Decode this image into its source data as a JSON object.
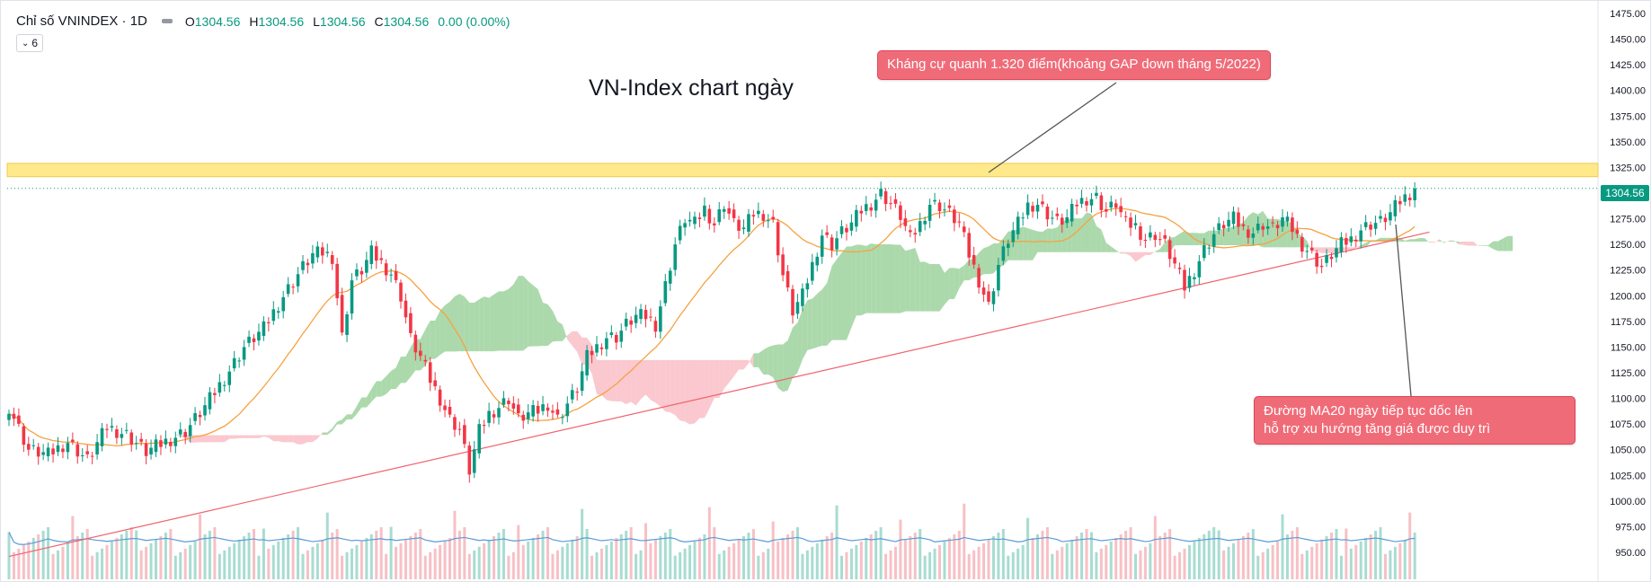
{
  "header": {
    "symbol_label": "Chỉ số VNINDEX · 1D",
    "ohlc": [
      {
        "k": "O",
        "v": "1304.56"
      },
      {
        "k": "H",
        "v": "1304.56"
      },
      {
        "k": "L",
        "v": "1304.56"
      },
      {
        "k": "C",
        "v": "1304.56"
      }
    ],
    "change": "0.00 (0.00%)",
    "indicator_count": "6"
  },
  "chart_data": {
    "type": "candlestick",
    "title": "VN-Index chart ngày",
    "y_axis": {
      "min": 950,
      "max": 1475,
      "ticks": [
        "1475.00",
        "1450.00",
        "1425.00",
        "1400.00",
        "1375.00",
        "1350.00",
        "1325.00",
        "1300.00",
        "1275.00",
        "1250.00",
        "1225.00",
        "1200.00",
        "1175.00",
        "1150.00",
        "1125.00",
        "1100.00",
        "1075.00",
        "1050.00",
        "1025.00",
        "1000.00",
        "975.00",
        "950.00"
      ]
    },
    "last_price": 1304.56,
    "last_price_label": "1304.56",
    "resistance_zone": [
      1316,
      1329
    ],
    "trendline": {
      "from_index": 0,
      "from_value": 946,
      "to_index": 290,
      "to_value": 1262
    },
    "close_anchors": [
      [
        0,
        1092
      ],
      [
        4,
        1050
      ],
      [
        8,
        1045
      ],
      [
        12,
        1058
      ],
      [
        16,
        1040
      ],
      [
        20,
        1072
      ],
      [
        24,
        1065
      ],
      [
        28,
        1048
      ],
      [
        32,
        1058
      ],
      [
        36,
        1068
      ],
      [
        40,
        1092
      ],
      [
        44,
        1120
      ],
      [
        48,
        1150
      ],
      [
        52,
        1168
      ],
      [
        56,
        1200
      ],
      [
        60,
        1228
      ],
      [
        62,
        1240
      ],
      [
        64,
        1242
      ],
      [
        66,
        1238
      ],
      [
        68,
        1160
      ],
      [
        70,
        1215
      ],
      [
        72,
        1225
      ],
      [
        74,
        1242
      ],
      [
        76,
        1232
      ],
      [
        78,
        1222
      ],
      [
        80,
        1200
      ],
      [
        82,
        1158
      ],
      [
        84,
        1140
      ],
      [
        86,
        1118
      ],
      [
        88,
        1100
      ],
      [
        90,
        1080
      ],
      [
        92,
        1070
      ],
      [
        94,
        1030
      ],
      [
        96,
        1068
      ],
      [
        98,
        1085
      ],
      [
        100,
        1092
      ],
      [
        102,
        1100
      ],
      [
        104,
        1080
      ],
      [
        106,
        1085
      ],
      [
        108,
        1088
      ],
      [
        110,
        1095
      ],
      [
        112,
        1080
      ],
      [
        114,
        1095
      ],
      [
        116,
        1110
      ],
      [
        118,
        1140
      ],
      [
        120,
        1150
      ],
      [
        122,
        1160
      ],
      [
        124,
        1160
      ],
      [
        126,
        1172
      ],
      [
        128,
        1180
      ],
      [
        130,
        1180
      ],
      [
        132,
        1172
      ],
      [
        134,
        1210
      ],
      [
        136,
        1250
      ],
      [
        138,
        1275
      ],
      [
        140,
        1270
      ],
      [
        142,
        1285
      ],
      [
        144,
        1270
      ],
      [
        146,
        1290
      ],
      [
        148,
        1270
      ],
      [
        150,
        1265
      ],
      [
        152,
        1280
      ],
      [
        154,
        1280
      ],
      [
        156,
        1270
      ],
      [
        158,
        1220
      ],
      [
        160,
        1185
      ],
      [
        162,
        1200
      ],
      [
        164,
        1230
      ],
      [
        166,
        1260
      ],
      [
        168,
        1250
      ],
      [
        170,
        1262
      ],
      [
        172,
        1270
      ],
      [
        174,
        1283
      ],
      [
        176,
        1290
      ],
      [
        178,
        1300
      ],
      [
        180,
        1290
      ],
      [
        182,
        1278
      ],
      [
        184,
        1255
      ],
      [
        186,
        1270
      ],
      [
        188,
        1290
      ],
      [
        190,
        1288
      ],
      [
        192,
        1280
      ],
      [
        194,
        1270
      ],
      [
        196,
        1240
      ],
      [
        198,
        1215
      ],
      [
        200,
        1190
      ],
      [
        202,
        1230
      ],
      [
        204,
        1255
      ],
      [
        206,
        1270
      ],
      [
        208,
        1288
      ],
      [
        210,
        1290
      ],
      [
        212,
        1280
      ],
      [
        214,
        1272
      ],
      [
        216,
        1275
      ],
      [
        218,
        1290
      ],
      [
        220,
        1295
      ],
      [
        222,
        1296
      ],
      [
        224,
        1282
      ],
      [
        226,
        1290
      ],
      [
        228,
        1270
      ],
      [
        230,
        1268
      ],
      [
        232,
        1255
      ],
      [
        234,
        1260
      ],
      [
        236,
        1250
      ],
      [
        238,
        1230
      ],
      [
        240,
        1208
      ],
      [
        242,
        1225
      ],
      [
        244,
        1245
      ],
      [
        246,
        1260
      ],
      [
        248,
        1270
      ],
      [
        250,
        1275
      ],
      [
        252,
        1265
      ],
      [
        254,
        1262
      ],
      [
        256,
        1270
      ],
      [
        258,
        1265
      ],
      [
        260,
        1275
      ],
      [
        262,
        1265
      ],
      [
        264,
        1250
      ],
      [
        266,
        1240
      ],
      [
        268,
        1228
      ],
      [
        270,
        1240
      ],
      [
        272,
        1250
      ],
      [
        274,
        1255
      ],
      [
        276,
        1265
      ],
      [
        278,
        1270
      ],
      [
        280,
        1272
      ],
      [
        282,
        1280
      ],
      [
        284,
        1292
      ],
      [
        286,
        1300
      ],
      [
        287,
        1304.56
      ]
    ],
    "series": [
      {
        "name": "Giá (nến)",
        "color_up": "#089981",
        "color_down": "#f23645"
      },
      {
        "name": "MA20",
        "color": "#f7a140"
      },
      {
        "name": "Ichimoku mây xanh",
        "color": "#8fcc8f"
      },
      {
        "name": "Ichimoku mây đỏ",
        "color": "#f8b5bd"
      },
      {
        "name": "Khối lượng",
        "color": "#f3a8ae"
      },
      {
        "name": "MA khối lượng",
        "color": "#5b9bd5"
      }
    ],
    "annotations": [
      {
        "text": "Kháng cự quanh 1.320 điểm(khoảng GAP down tháng 5/2022)"
      },
      {
        "text": "Đường MA20 ngày tiếp tục dốc lên\nhỗ trợ xu hướng tăng giá được duy trì"
      }
    ]
  },
  "colors": {
    "up": "#089981",
    "down": "#f23645",
    "ma20": "#f7a140",
    "cloud_green": "#8fcc8f",
    "cloud_red": "#f8b5bd",
    "resistance": "#ffe98a",
    "trendline": "#f0626e",
    "volume_ma": "#5b9bd5",
    "callout": "#f06b78"
  }
}
